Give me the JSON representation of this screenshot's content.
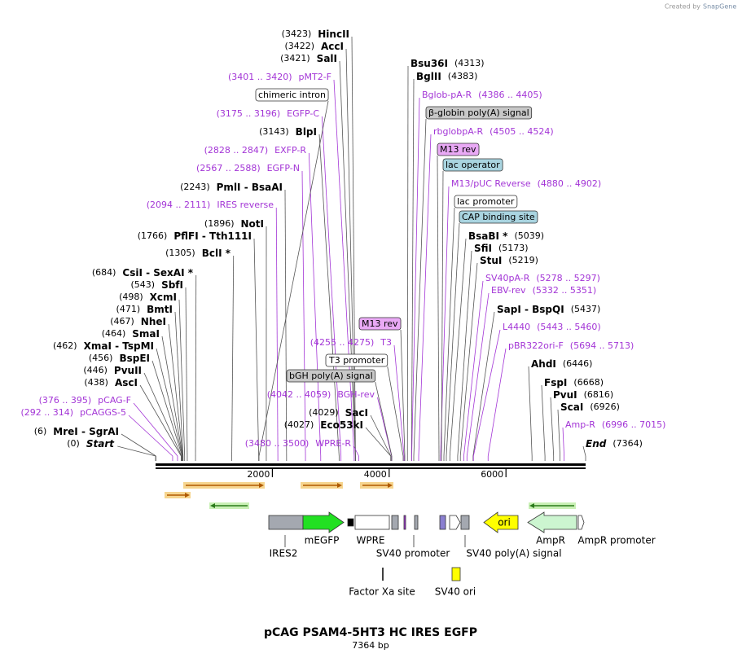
{
  "credit": {
    "prefix": "Created by",
    "brand": "SnapGene"
  },
  "enzymes": [
    {
      "number": "(3423)",
      "name": "HincII"
    },
    {
      "number": "(3422)",
      "name": "AccI"
    },
    {
      "number": "(3421)",
      "name": "SalI"
    },
    {
      "number": "(3143)",
      "name": "BlpI"
    },
    {
      "number": "(2243)",
      "name": "PmlI - BsaAI"
    },
    {
      "number": "(1896)",
      "name": "NotI"
    },
    {
      "number": "(1766)",
      "name": "PflFI - Tth111I"
    },
    {
      "number": "(1305)",
      "name": "BclI *"
    },
    {
      "number": "(684)",
      "name": "CsiI - SexAI *"
    },
    {
      "number": "(543)",
      "name": "SbfI"
    },
    {
      "number": "(498)",
      "name": "XcmI"
    },
    {
      "number": "(471)",
      "name": "BmtI"
    },
    {
      "number": "(467)",
      "name": "NheI"
    },
    {
      "number": "(464)",
      "name": "SmaI"
    },
    {
      "number": "(462)",
      "name": "XmaI - TspMI"
    },
    {
      "number": "(456)",
      "name": "BspEI"
    },
    {
      "number": "(446)",
      "name": "PvuII"
    },
    {
      "number": "(438)",
      "name": "AscI"
    },
    {
      "number": "(4029)",
      "name": "SacI"
    },
    {
      "number": "(4027)",
      "name": "Eco53kI"
    },
    {
      "number": "(6)",
      "name": "MreI - SgrAI"
    },
    {
      "number": "(0)",
      "name": "Start"
    },
    {
      "number": "(4313)",
      "name": "Bsu36I"
    },
    {
      "number": "(4383)",
      "name": "BglII"
    },
    {
      "number": "(5039)",
      "name": "BsaBI *"
    },
    {
      "number": "(5173)",
      "name": "SfiI"
    },
    {
      "number": "(5219)",
      "name": "StuI"
    },
    {
      "number": "(5437)",
      "name": "SapI - BspQI"
    },
    {
      "number": "(6446)",
      "name": "AhdI"
    },
    {
      "number": "(6668)",
      "name": "FspI"
    },
    {
      "number": "(6816)",
      "name": "PvuI"
    },
    {
      "number": "(6926)",
      "name": "ScaI"
    },
    {
      "number": "(7364)",
      "name": "End"
    }
  ],
  "primers": [
    {
      "range": "(3401 .. 3420)",
      "name": "pMT2-F"
    },
    {
      "range": "(3175 .. 3196)",
      "name": "EGFP-C"
    },
    {
      "range": "(2828 .. 2847)",
      "name": "EXFP-R"
    },
    {
      "range": "(2567 .. 2588)",
      "name": "EGFP-N"
    },
    {
      "range": "(2094 .. 2111)",
      "name": "IRES reverse"
    },
    {
      "range": "(376 .. 395)",
      "name": "pCAG-F"
    },
    {
      "range": "(292 .. 314)",
      "name": "pCAGGS-5"
    },
    {
      "range": "(4255 .. 4275)",
      "name": "T3"
    },
    {
      "range": "(4042 .. 4059)",
      "name": "BGH-rev"
    },
    {
      "range": "(3480 .. 3500)",
      "name": "WPRE-R"
    },
    {
      "range": "(4386 .. 4405)",
      "name": "Bglob-pA-R"
    },
    {
      "range": "(4505 .. 4524)",
      "name": "rbglobpA-R"
    },
    {
      "range": "(4880 .. 4902)",
      "name": "M13/pUC Reverse"
    },
    {
      "range": "(5278 .. 5297)",
      "name": "SV40pA-R"
    },
    {
      "range": "(5332 .. 5351)",
      "name": "EBV-rev"
    },
    {
      "range": "(5443 .. 5460)",
      "name": "L4440"
    },
    {
      "range": "(5694 .. 5713)",
      "name": "pBR322ori-F"
    },
    {
      "range": "(6996 .. 7015)",
      "name": "Amp-R"
    }
  ],
  "boxed": [
    "chimeric intron",
    "β-globin poly(A) signal",
    "M13 rev",
    "lac operator",
    "lac promoter",
    "CAP binding site",
    "M13 rev",
    "T3 promoter",
    "bGH poly(A) signal"
  ],
  "axis": {
    "lim": [
      0,
      7364
    ],
    "ticks": [
      2000,
      4000,
      6000
    ]
  },
  "features": [
    "IRES2",
    "mEGFP",
    "WPRE",
    "SV40 promoter",
    "SV40 poly(A) signal",
    "AmpR",
    "AmpR promoter",
    "Factor Xa site",
    "SV40 ori",
    "ori"
  ],
  "title": "pCAG PSAM4-5HT3 HC IRES EGFP",
  "length": "7364 bp"
}
